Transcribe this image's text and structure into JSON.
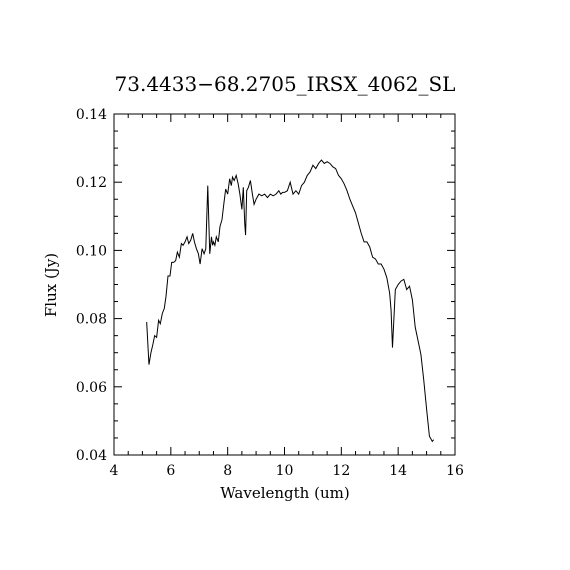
{
  "chart_data": {
    "type": "line",
    "title": "73.4433−68.2705_IRSX_4062_SL",
    "xlabel": "Wavelength (um)",
    "ylabel": "Flux (Jy)",
    "xlim": [
      4,
      16
    ],
    "ylim": [
      0.04,
      0.14
    ],
    "xticks": [
      4,
      6,
      8,
      10,
      12,
      14,
      16
    ],
    "yticks": [
      0.04,
      0.06,
      0.08,
      0.1,
      0.12,
      0.14
    ],
    "xtick_labels": [
      "4",
      "6",
      "8",
      "10",
      "12",
      "14",
      "16"
    ],
    "ytick_labels": [
      "0.04",
      "0.06",
      "0.08",
      "0.10",
      "0.12",
      "0.14"
    ],
    "grid": false,
    "line_color": "#000000",
    "series": [
      {
        "x": [
          5.15,
          5.23,
          5.3,
          5.37,
          5.43,
          5.5,
          5.57,
          5.63,
          5.7,
          5.77,
          5.83,
          5.9,
          5.97,
          6.03,
          6.1,
          6.17,
          6.23,
          6.3,
          6.37,
          6.43,
          6.5,
          6.57,
          6.63,
          6.7,
          6.77,
          6.83,
          6.9,
          6.97,
          7.03,
          7.1,
          7.17,
          7.23,
          7.3,
          7.37,
          7.43,
          7.47,
          7.5,
          7.55,
          7.6,
          7.67,
          7.73,
          7.8,
          7.87,
          7.93,
          8.0,
          8.07,
          8.13,
          8.17,
          8.23,
          8.3,
          8.37,
          8.43,
          8.5,
          8.55,
          8.6,
          8.63,
          8.67,
          8.73,
          8.8,
          8.87,
          8.93,
          9.0,
          9.1,
          9.2,
          9.3,
          9.4,
          9.5,
          9.6,
          9.7,
          9.8,
          9.87,
          9.93,
          10.0,
          10.1,
          10.2,
          10.3,
          10.4,
          10.5,
          10.6,
          10.7,
          10.8,
          10.9,
          11.0,
          11.1,
          11.2,
          11.3,
          11.4,
          11.5,
          11.6,
          11.7,
          11.8,
          11.9,
          12.0,
          12.1,
          12.2,
          12.3,
          12.4,
          12.5,
          12.6,
          12.7,
          12.8,
          12.9,
          13.0,
          13.1,
          13.2,
          13.3,
          13.4,
          13.5,
          13.6,
          13.7,
          13.75,
          13.8,
          13.9,
          14.0,
          14.1,
          14.2,
          14.3,
          14.4,
          14.5,
          14.6,
          14.7,
          14.8,
          14.9,
          15.0,
          15.1,
          15.2,
          15.25
        ],
        "y": [
          0.079,
          0.0665,
          0.07,
          0.0725,
          0.075,
          0.0745,
          0.0795,
          0.0785,
          0.0815,
          0.083,
          0.0865,
          0.0925,
          0.0925,
          0.0965,
          0.0965,
          0.097,
          0.0995,
          0.098,
          0.102,
          0.1015,
          0.1025,
          0.104,
          0.102,
          0.103,
          0.105,
          0.1025,
          0.1005,
          0.099,
          0.096,
          0.1005,
          0.099,
          0.1005,
          0.119,
          0.099,
          0.104,
          0.1015,
          0.1025,
          0.1015,
          0.104,
          0.1025,
          0.107,
          0.109,
          0.114,
          0.118,
          0.1165,
          0.121,
          0.119,
          0.1215,
          0.1205,
          0.122,
          0.1195,
          0.1165,
          0.112,
          0.1185,
          0.108,
          0.1045,
          0.1175,
          0.1185,
          0.1205,
          0.1165,
          0.1135,
          0.115,
          0.1165,
          0.116,
          0.1165,
          0.1155,
          0.1165,
          0.116,
          0.1165,
          0.1175,
          0.1165,
          0.117,
          0.117,
          0.1175,
          0.12,
          0.1165,
          0.1175,
          0.1165,
          0.119,
          0.12,
          0.122,
          0.123,
          0.125,
          0.124,
          0.1255,
          0.1265,
          0.1255,
          0.126,
          0.1255,
          0.1245,
          0.124,
          0.122,
          0.121,
          0.1195,
          0.1175,
          0.115,
          0.113,
          0.111,
          0.108,
          0.105,
          0.1025,
          0.1025,
          0.101,
          0.098,
          0.0975,
          0.096,
          0.096,
          0.0945,
          0.092,
          0.0875,
          0.0825,
          0.0715,
          0.0885,
          0.09,
          0.091,
          0.0915,
          0.0885,
          0.0895,
          0.0855,
          0.0775,
          0.0735,
          0.0695,
          0.062,
          0.0535,
          0.0455,
          0.044,
          0.0445
        ]
      }
    ]
  }
}
